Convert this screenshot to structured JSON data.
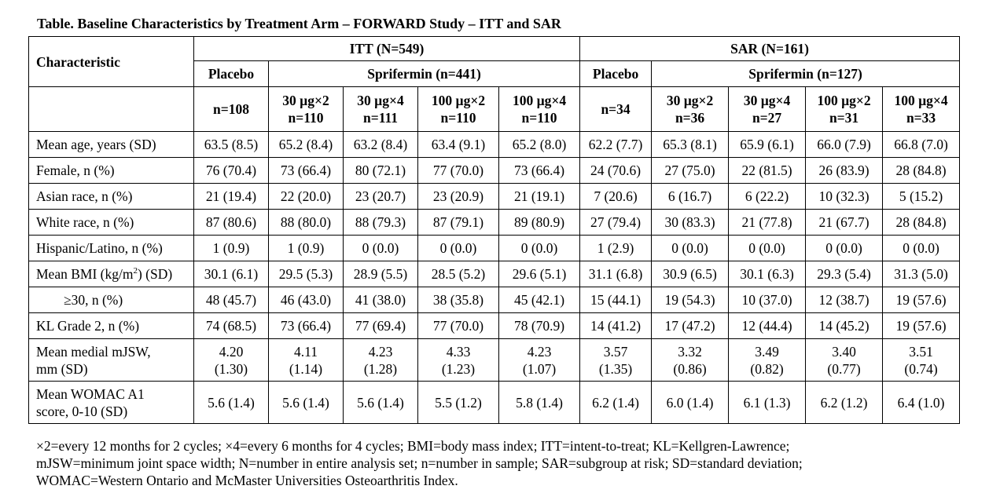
{
  "title": "Table. Baseline Characteristics by Treatment Arm – FORWARD Study – ITT and SAR",
  "header": {
    "characteristic": "Characteristic",
    "itt": "ITT (N=549)",
    "sar": "SAR (N=161)",
    "itt_placebo": "Placebo",
    "itt_sprifermin": "Sprifermin (n=441)",
    "sar_placebo": "Placebo",
    "sar_sprifermin": "Sprifermin (n=127)",
    "columns": [
      {
        "dose": "",
        "n": "n=108"
      },
      {
        "dose": "30 µg×2",
        "n": "n=110"
      },
      {
        "dose": "30 µg×4",
        "n": "n=111"
      },
      {
        "dose": "100 µg×2",
        "n": "n=110"
      },
      {
        "dose": "100 µg×4",
        "n": "n=110"
      },
      {
        "dose": "",
        "n": "n=34"
      },
      {
        "dose": "30 µg×2",
        "n": "n=36"
      },
      {
        "dose": "30 µg×4",
        "n": "n=27"
      },
      {
        "dose": "100 µg×2",
        "n": "n=31"
      },
      {
        "dose": "100 µg×4",
        "n": "n=33"
      }
    ]
  },
  "rows": [
    {
      "label": "Mean age, years (SD)",
      "values": [
        "63.5 (8.5)",
        "65.2 (8.4)",
        "63.2 (8.4)",
        "63.4 (9.1)",
        "65.2 (8.0)",
        "62.2 (7.7)",
        "65.3 (8.1)",
        "65.9 (6.1)",
        "66.0 (7.9)",
        "66.8 (7.0)"
      ]
    },
    {
      "label": "Female, n (%)",
      "values": [
        "76 (70.4)",
        "73 (66.4)",
        "80 (72.1)",
        "77 (70.0)",
        "73 (66.4)",
        "24 (70.6)",
        "27 (75.0)",
        "22 (81.5)",
        "26 (83.9)",
        "28 (84.8)"
      ]
    },
    {
      "label": "Asian race, n (%)",
      "values": [
        "21 (19.4)",
        "22 (20.0)",
        "23 (20.7)",
        "23 (20.9)",
        "21 (19.1)",
        "7 (20.6)",
        "6 (16.7)",
        "6 (22.2)",
        "10 (32.3)",
        "5 (15.2)"
      ]
    },
    {
      "label": "White race, n (%)",
      "values": [
        "87 (80.6)",
        "88 (80.0)",
        "88 (79.3)",
        "87 (79.1)",
        "89 (80.9)",
        "27 (79.4)",
        "30 (83.3)",
        "21 (77.8)",
        "21 (67.7)",
        "28 (84.8)"
      ]
    },
    {
      "label": "Hispanic/Latino, n (%)",
      "values": [
        "1 (0.9)",
        "1 (0.9)",
        "0 (0.0)",
        "0 (0.0)",
        "0 (0.0)",
        "1 (2.9)",
        "0 (0.0)",
        "0 (0.0)",
        "0 (0.0)",
        "0 (0.0)"
      ]
    },
    {
      "label_pre": "Mean BMI (kg/m",
      "label_sup": "2",
      "label_post": ") (SD)",
      "values": [
        "30.1 (6.1)",
        "29.5 (5.3)",
        "28.9 (5.5)",
        "28.5 (5.2)",
        "29.6 (5.1)",
        "31.1 (6.8)",
        "30.9 (6.5)",
        "30.1 (6.3)",
        "29.3 (5.4)",
        "31.3 (5.0)"
      ]
    },
    {
      "label": "≥30, n (%)",
      "values": [
        "48 (45.7)",
        "46 (43.0)",
        "41 (38.0)",
        "38 (35.8)",
        "45 (42.1)",
        "15 (44.1)",
        "19 (54.3)",
        "10 (37.0)",
        "12 (38.7)",
        "19 (57.6)"
      ]
    },
    {
      "label": "KL Grade 2, n (%)",
      "values": [
        "74 (68.5)",
        "73 (66.4)",
        "77 (69.4)",
        "77 (70.0)",
        "78 (70.9)",
        "14 (41.2)",
        "17 (47.2)",
        "12 (44.4)",
        "14 (45.2)",
        "19 (57.6)"
      ]
    },
    {
      "label_l1": "Mean medial mJSW,",
      "label_l2": "mm (SD)",
      "v1": [
        "4.20",
        "4.11",
        "4.23",
        "4.33",
        "4.23",
        "3.57",
        "3.32",
        "3.49",
        "3.40",
        "3.51"
      ],
      "v2": [
        "(1.30)",
        "(1.14)",
        "(1.28)",
        "(1.23)",
        "(1.07)",
        "(1.35)",
        "(0.86)",
        "(0.82)",
        "(0.77)",
        "(0.74)"
      ]
    },
    {
      "label_l1": "Mean WOMAC A1",
      "label_l2": "score, 0-10 (SD)",
      "values": [
        "5.6 (1.4)",
        "5.6 (1.4)",
        "5.6 (1.4)",
        "5.5 (1.2)",
        "5.8 (1.4)",
        "6.2 (1.4)",
        "6.0 (1.4)",
        "6.1 (1.3)",
        "6.2 (1.2)",
        "6.4 (1.0)"
      ]
    }
  ],
  "footnote": {
    "line1": "×2=every 12 months for 2 cycles; ×4=every 6 months for 4 cycles; BMI=body mass index; ITT=intent-to-treat; KL=Kellgren-Lawrence;",
    "line2": "mJSW=minimum joint space width; N=number in entire analysis set; n=number in sample; SAR=subgroup at risk; SD=standard deviation;",
    "line3": "WOMAC=Western Ontario and McMaster Universities Osteoarthritis Index."
  }
}
